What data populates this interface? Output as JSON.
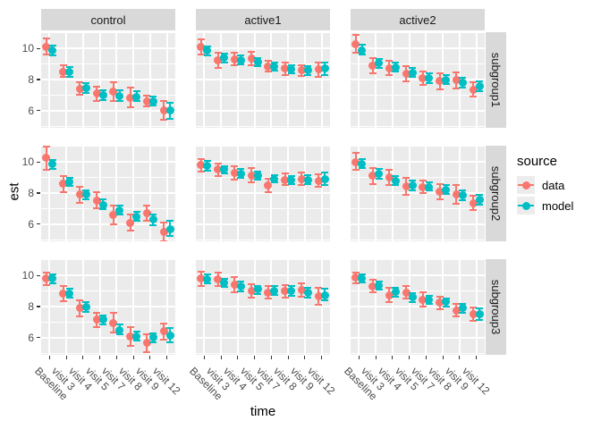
{
  "chart_data": {
    "type": "pointrange-faceted",
    "title": "",
    "xlabel": "time",
    "ylabel": "est",
    "facet_cols": [
      "control",
      "active1",
      "active2"
    ],
    "facet_rows": [
      "subgroup1",
      "subgroup2",
      "subgroup3"
    ],
    "x_categories": [
      "Baseline",
      "visit 3",
      "visit 4",
      "visit 5",
      "visit 7",
      "visit 8",
      "visit 9",
      "visit 12"
    ],
    "y_ticks": [
      10,
      8,
      6
    ],
    "y_minor_gridlines": [
      5,
      7,
      9,
      11
    ],
    "y_domain": [
      4.9,
      11.05
    ],
    "grid": true,
    "panel_bg": "#EBEBEB",
    "strip_bg": "#D9D9D9",
    "legend": {
      "title": "source",
      "position": "right",
      "items": [
        {
          "label": "data",
          "color": "#F8766D"
        },
        {
          "label": "model",
          "color": "#00BFC4"
        }
      ]
    },
    "panels": [
      {
        "row": "subgroup1",
        "col": "control",
        "data_est": [
          10.1,
          8.5,
          7.4,
          7.1,
          7.2,
          6.85,
          6.6,
          6.0
        ],
        "data_lo": [
          9.6,
          8.15,
          7.0,
          6.6,
          6.6,
          6.2,
          6.3,
          5.4
        ],
        "data_hi": [
          10.65,
          8.9,
          7.85,
          7.55,
          7.85,
          7.5,
          6.95,
          6.6
        ],
        "model_est": [
          9.85,
          8.5,
          7.45,
          7.0,
          6.95,
          6.9,
          6.6,
          6.0
        ],
        "model_lo": [
          9.55,
          8.2,
          7.15,
          6.7,
          6.65,
          6.6,
          6.35,
          5.5
        ],
        "model_hi": [
          10.2,
          8.8,
          7.75,
          7.3,
          7.3,
          7.25,
          6.9,
          6.5
        ]
      },
      {
        "row": "subgroup1",
        "col": "active1",
        "data_est": [
          10.1,
          9.25,
          9.3,
          9.35,
          8.85,
          8.7,
          8.6,
          8.65
        ],
        "data_lo": [
          9.6,
          8.75,
          8.9,
          8.95,
          8.5,
          8.3,
          8.25,
          8.2
        ],
        "data_hi": [
          10.6,
          9.75,
          9.7,
          9.8,
          9.2,
          9.1,
          8.95,
          9.1
        ],
        "model_est": [
          9.85,
          9.4,
          9.25,
          9.1,
          8.85,
          8.65,
          8.6,
          8.7
        ],
        "model_lo": [
          9.55,
          9.1,
          9.0,
          8.85,
          8.6,
          8.4,
          8.3,
          8.3
        ],
        "model_hi": [
          10.15,
          9.65,
          9.55,
          9.4,
          9.1,
          8.9,
          8.85,
          9.1
        ]
      },
      {
        "row": "subgroup1",
        "col": "active2",
        "data_est": [
          10.3,
          8.9,
          8.75,
          8.4,
          8.1,
          7.9,
          7.95,
          7.35
        ],
        "data_lo": [
          9.75,
          8.4,
          8.3,
          7.9,
          7.65,
          7.4,
          7.45,
          6.9
        ],
        "data_hi": [
          10.85,
          9.4,
          9.2,
          8.85,
          8.55,
          8.4,
          8.45,
          7.85
        ],
        "model_est": [
          9.9,
          9.05,
          8.8,
          8.45,
          8.1,
          8.0,
          7.8,
          7.6
        ],
        "model_lo": [
          9.6,
          8.75,
          8.5,
          8.15,
          7.8,
          7.7,
          7.5,
          7.25
        ],
        "model_hi": [
          10.25,
          9.35,
          9.1,
          8.75,
          8.4,
          8.3,
          8.1,
          7.9
        ]
      },
      {
        "row": "subgroup2",
        "col": "control",
        "data_est": [
          10.3,
          8.6,
          7.9,
          7.5,
          6.6,
          6.1,
          6.7,
          5.5
        ],
        "data_lo": [
          9.5,
          8.05,
          7.35,
          7.0,
          6.0,
          5.6,
          6.2,
          4.9
        ],
        "data_hi": [
          11.0,
          9.1,
          8.4,
          8.05,
          7.2,
          6.6,
          7.2,
          6.1
        ],
        "model_est": [
          9.85,
          8.75,
          7.9,
          7.25,
          6.9,
          6.5,
          6.3,
          5.7
        ],
        "model_lo": [
          9.55,
          8.45,
          7.6,
          6.95,
          6.6,
          6.2,
          5.95,
          5.25
        ],
        "model_hi": [
          10.15,
          9.0,
          8.2,
          7.6,
          7.2,
          6.8,
          6.6,
          6.2
        ]
      },
      {
        "row": "subgroup2",
        "col": "active1",
        "data_est": [
          9.8,
          9.5,
          9.3,
          9.15,
          8.5,
          8.85,
          8.9,
          8.8
        ],
        "data_lo": [
          9.4,
          9.1,
          8.85,
          8.7,
          8.05,
          8.5,
          8.5,
          8.4
        ],
        "data_hi": [
          10.2,
          9.9,
          9.75,
          9.6,
          8.95,
          9.25,
          9.3,
          9.2
        ],
        "model_est": [
          9.75,
          9.5,
          9.25,
          9.1,
          8.9,
          8.85,
          8.85,
          8.9
        ],
        "model_lo": [
          9.45,
          9.25,
          9.0,
          8.85,
          8.7,
          8.6,
          8.6,
          8.55
        ],
        "model_hi": [
          10.05,
          9.75,
          9.55,
          9.4,
          9.15,
          9.1,
          9.15,
          9.3
        ]
      },
      {
        "row": "subgroup2",
        "col": "active2",
        "data_est": [
          10.0,
          9.1,
          9.0,
          8.45,
          8.4,
          8.1,
          7.9,
          7.35
        ],
        "data_lo": [
          9.5,
          8.6,
          8.5,
          7.9,
          8.0,
          7.6,
          7.3,
          6.9
        ],
        "data_hi": [
          10.6,
          9.6,
          9.5,
          9.0,
          8.8,
          8.6,
          8.5,
          7.85
        ],
        "model_est": [
          9.9,
          9.25,
          8.8,
          8.5,
          8.4,
          8.2,
          7.85,
          7.55
        ],
        "model_lo": [
          9.6,
          8.95,
          8.5,
          8.2,
          8.15,
          7.95,
          7.55,
          7.25
        ],
        "model_hi": [
          10.2,
          9.55,
          9.1,
          8.8,
          8.7,
          8.5,
          8.15,
          7.9
        ]
      },
      {
        "row": "subgroup3",
        "col": "control",
        "data_est": [
          9.8,
          8.85,
          7.9,
          7.15,
          6.95,
          6.1,
          5.65,
          6.4
        ],
        "data_lo": [
          9.4,
          8.35,
          7.35,
          6.7,
          6.35,
          5.5,
          5.05,
          5.85
        ],
        "data_hi": [
          10.2,
          9.3,
          8.4,
          7.6,
          7.6,
          6.7,
          6.25,
          6.9
        ],
        "model_est": [
          9.8,
          8.85,
          7.95,
          7.15,
          6.5,
          6.1,
          6.0,
          6.15
        ],
        "model_lo": [
          9.5,
          8.6,
          7.65,
          6.85,
          6.2,
          5.8,
          5.7,
          5.7
        ],
        "model_hi": [
          10.1,
          9.15,
          8.3,
          7.45,
          6.85,
          6.4,
          6.3,
          6.6
        ]
      },
      {
        "row": "subgroup3",
        "col": "active1",
        "data_est": [
          9.8,
          9.75,
          9.4,
          9.0,
          8.9,
          9.0,
          9.05,
          8.65
        ],
        "data_lo": [
          9.35,
          9.3,
          8.9,
          8.6,
          8.5,
          8.6,
          8.65,
          8.1
        ],
        "data_hi": [
          10.25,
          10.2,
          9.9,
          9.45,
          9.3,
          9.4,
          9.5,
          9.2
        ],
        "model_est": [
          9.75,
          9.5,
          9.3,
          9.1,
          9.0,
          9.0,
          8.9,
          8.75
        ],
        "model_lo": [
          9.5,
          9.25,
          9.0,
          8.8,
          8.75,
          8.7,
          8.6,
          8.4
        ],
        "model_hi": [
          10.05,
          9.8,
          9.6,
          9.35,
          9.3,
          9.3,
          9.2,
          9.15
        ]
      },
      {
        "row": "subgroup3",
        "col": "active2",
        "data_est": [
          9.85,
          9.3,
          8.75,
          8.9,
          8.45,
          8.25,
          7.75,
          7.5
        ],
        "data_lo": [
          9.5,
          8.9,
          8.3,
          8.5,
          8.0,
          7.85,
          7.35,
          7.1
        ],
        "data_hi": [
          10.2,
          9.7,
          9.2,
          9.3,
          8.9,
          8.65,
          8.2,
          7.95
        ],
        "model_est": [
          9.8,
          9.35,
          8.95,
          8.6,
          8.45,
          8.3,
          7.9,
          7.5
        ],
        "model_lo": [
          9.55,
          9.1,
          8.65,
          8.3,
          8.15,
          8.0,
          7.6,
          7.15
        ],
        "model_hi": [
          10.1,
          9.6,
          9.2,
          8.85,
          8.7,
          8.55,
          8.2,
          7.9
        ]
      }
    ]
  }
}
